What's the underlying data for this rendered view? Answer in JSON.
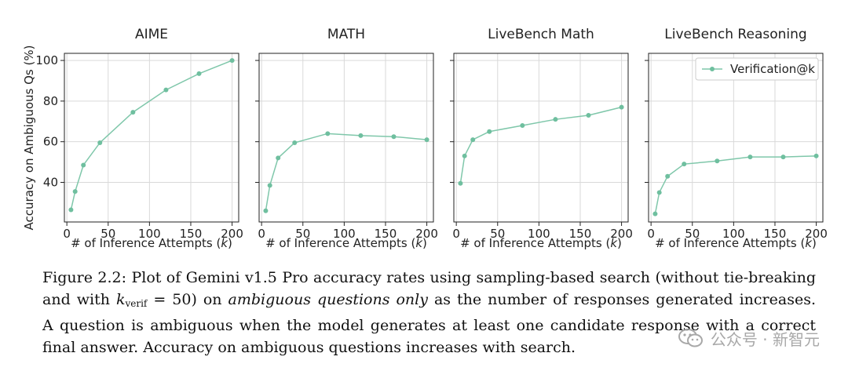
{
  "colors": {
    "series": "#7fc7aa",
    "marker": "#6fbf9f",
    "grid": "#d9d9d9",
    "axis": "#222222"
  },
  "chart_data": [
    {
      "type": "line",
      "title": "AIME",
      "xlabel_prefix": "# of Inference Attempts (",
      "xlabel_var": "k",
      "xlabel_suffix": ")",
      "ylabel": "Accuracy on Ambiguous Qs (%)",
      "xlim": [
        -3,
        208
      ],
      "ylim": [
        20.5,
        103.5
      ],
      "xticks": [
        0,
        50,
        100,
        150,
        200
      ],
      "yticks": [
        40,
        60,
        80,
        100
      ],
      "show_yticks": true,
      "grid": true,
      "series": [
        {
          "name": "Verification@k",
          "x": [
            5,
            10,
            20,
            40,
            80,
            120,
            160,
            200
          ],
          "y": [
            26.5,
            35.5,
            48.5,
            59.5,
            74.5,
            85.5,
            93.5,
            100
          ]
        }
      ]
    },
    {
      "type": "line",
      "title": "MATH",
      "xlabel_prefix": "# of Inference Attempts (",
      "xlabel_var": "k",
      "xlabel_suffix": ")",
      "xlim": [
        -3,
        208
      ],
      "ylim": [
        20.5,
        103.5
      ],
      "xticks": [
        0,
        50,
        100,
        150,
        200
      ],
      "yticks": [
        40,
        60,
        80,
        100
      ],
      "show_yticks": false,
      "grid": true,
      "series": [
        {
          "name": "Verification@k",
          "x": [
            5,
            10,
            20,
            40,
            80,
            120,
            160,
            200
          ],
          "y": [
            26,
            38.5,
            52,
            59.5,
            64,
            63,
            62.5,
            61
          ]
        }
      ]
    },
    {
      "type": "line",
      "title": "LiveBench Math",
      "xlabel_prefix": "# of Inference Attempts (",
      "xlabel_var": "k",
      "xlabel_suffix": ")",
      "xlim": [
        -3,
        208
      ],
      "ylim": [
        20.5,
        103.5
      ],
      "xticks": [
        0,
        50,
        100,
        150,
        200
      ],
      "yticks": [
        40,
        60,
        80,
        100
      ],
      "show_yticks": false,
      "grid": true,
      "series": [
        {
          "name": "Verification@k",
          "x": [
            5,
            10,
            20,
            40,
            80,
            120,
            160,
            200
          ],
          "y": [
            39.5,
            53,
            61,
            65,
            68,
            71,
            73,
            77
          ]
        }
      ]
    },
    {
      "type": "line",
      "title": "LiveBench Reasoning",
      "xlabel_prefix": "# of Inference Attempts (",
      "xlabel_var": "k",
      "xlabel_suffix": ")",
      "xlim": [
        -3,
        208
      ],
      "ylim": [
        20.5,
        103.5
      ],
      "xticks": [
        0,
        50,
        100,
        150,
        200
      ],
      "yticks": [
        40,
        60,
        80,
        100
      ],
      "show_yticks": false,
      "grid": true,
      "legend": "top-right",
      "series": [
        {
          "name": "Verification@k",
          "x": [
            5,
            10,
            20,
            40,
            80,
            120,
            160,
            200
          ],
          "y": [
            24.5,
            35,
            43,
            49,
            50.5,
            52.5,
            52.5,
            53
          ]
        }
      ]
    }
  ],
  "caption": {
    "label": "Figure 2.2:",
    "part1": "Plot of Gemini v1.5 Pro accuracy rates using sampling-based search (without tie-breaking",
    "part2a": "and with ",
    "k_sym": "k",
    "k_sub": "verif",
    "part2b": " = 50) on ",
    "part2_italic": "ambiguous questions only",
    "part2c": " as the number of responses generated increases.",
    "line3": "A question is ambiguous when the model generates at least one candidate response with a correct",
    "line4": "final answer. Accuracy on ambiguous questions increases with search."
  },
  "watermark": {
    "text": "公众号 · 新智元",
    "icon": "wechat-icon"
  }
}
